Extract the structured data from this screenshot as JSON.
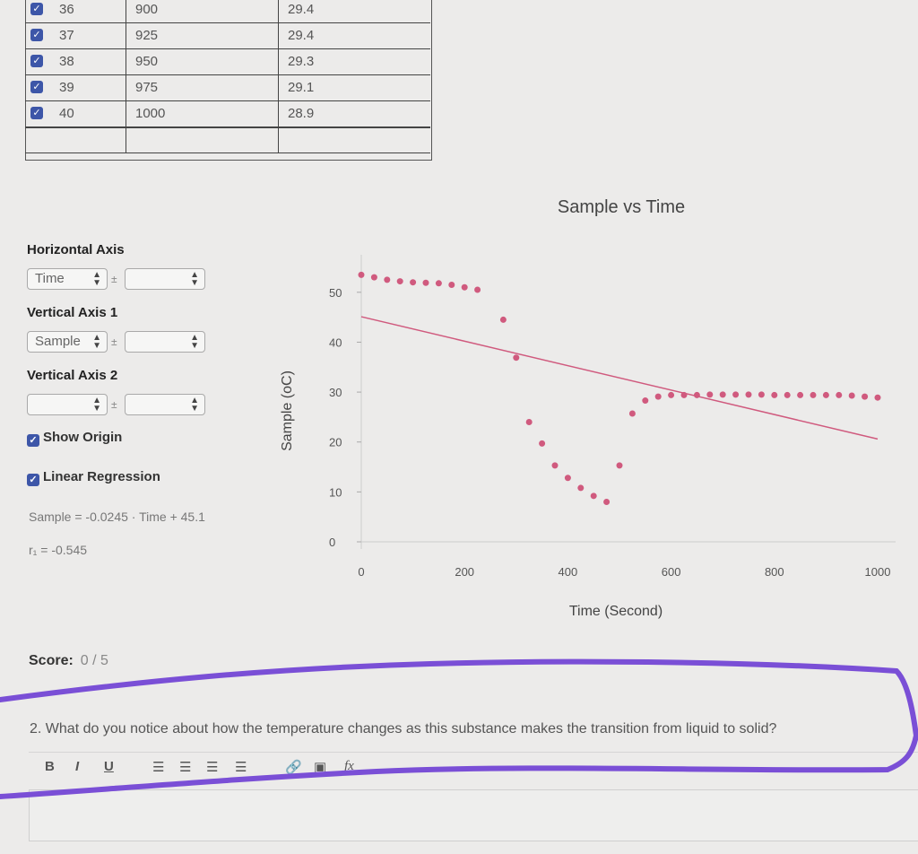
{
  "table": {
    "rows": [
      {
        "num": "36",
        "time": "900",
        "sample": "29.4",
        "top": -3
      },
      {
        "num": "37",
        "time": "925",
        "sample": "29.4",
        "top": 26
      },
      {
        "num": "38",
        "time": "950",
        "sample": "29.3",
        "top": 55
      },
      {
        "num": "39",
        "time": "975",
        "sample": "29.1",
        "top": 84
      },
      {
        "num": "40",
        "time": "1000",
        "sample": "28.9",
        "top": 113
      }
    ]
  },
  "panel": {
    "horizontal_axis_label": "Horizontal Axis",
    "horizontal_axis_value": "Time",
    "vertical_axis1_label": "Vertical Axis 1",
    "vertical_axis1_value": "Sample",
    "vertical_axis2_label": "Vertical Axis 2",
    "vertical_axis2_value": "",
    "plus_minus": "±",
    "show_origin": "Show Origin",
    "linear_regression": "Linear Regression",
    "equation": "Sample = -0.0245 · Time + 45.1",
    "r_value": "r₁ = -0.545"
  },
  "score": {
    "label": "Score:",
    "value": "0 / 5"
  },
  "question": "2. What do you notice about how the temperature changes as this substance makes the transition from liquid to solid?",
  "toolbar": {
    "bold": "B",
    "italic": "I",
    "underline": "U",
    "fx": "fx"
  },
  "colors": {
    "accent": "#3d56a8",
    "points": "#d05a7e",
    "annotation": "#7a4fd6"
  },
  "chart_data": {
    "type": "scatter",
    "title": "Sample vs Time",
    "xlabel": "Time (Second)",
    "ylabel": "Sample (oC)",
    "xlim": [
      0,
      1000
    ],
    "ylim": [
      0,
      55
    ],
    "xticks": [
      0,
      200,
      400,
      600,
      800,
      1000
    ],
    "yticks": [
      0,
      10,
      20,
      30,
      40,
      50
    ],
    "series": [
      {
        "x": [
          0,
          25,
          50,
          75,
          100,
          125,
          150,
          175,
          200,
          225,
          275,
          300,
          325,
          350,
          375,
          400,
          425,
          450,
          475,
          500,
          525,
          550,
          575,
          600,
          625,
          650,
          675,
          700,
          725,
          750,
          775,
          800,
          825,
          850,
          875,
          900,
          925,
          950,
          975,
          1000
        ],
        "y": [
          53.5,
          53,
          52.5,
          52.2,
          52,
          51.9,
          51.8,
          51.5,
          51,
          50.5,
          44.5,
          36.9,
          24,
          19.7,
          15.3,
          12.8,
          10.8,
          9.2,
          8,
          15.3,
          25.7,
          28.3,
          29.1,
          29.4,
          29.4,
          29.4,
          29.5,
          29.5,
          29.5,
          29.5,
          29.5,
          29.4,
          29.4,
          29.4,
          29.4,
          29.4,
          29.4,
          29.3,
          29.1,
          28.9
        ]
      }
    ],
    "regression": {
      "slope": -0.0245,
      "intercept": 45.1
    }
  }
}
